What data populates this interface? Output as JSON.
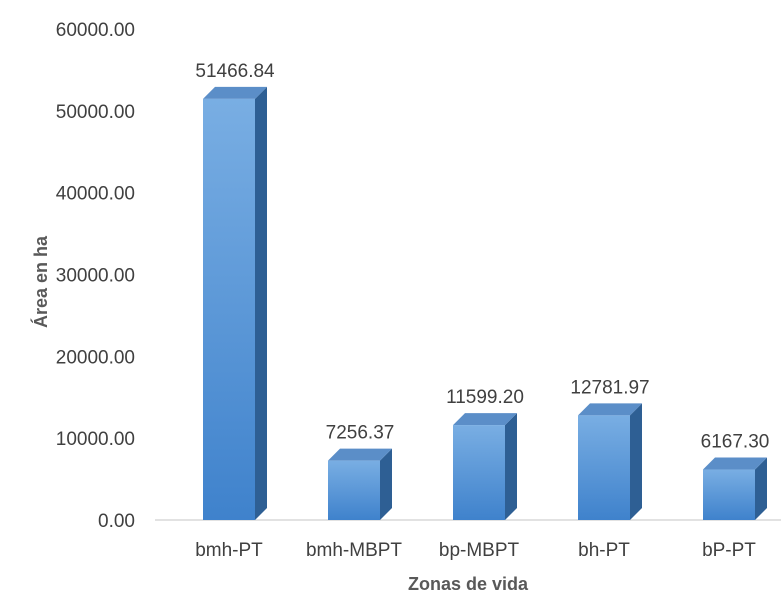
{
  "chart_data": {
    "type": "bar",
    "title": "",
    "xlabel": "Zonas de vida",
    "ylabel": "Área en ha",
    "categories": [
      "bmh-PT",
      "bmh-MBPT",
      "bp-MBPT",
      "bh-PT",
      "bP-PT"
    ],
    "values": [
      51466.84,
      7256.37,
      11599.2,
      12781.97,
      6167.3
    ],
    "value_labels": [
      "51466.84",
      "7256.37",
      "11599.20",
      "12781.97",
      "6167.30"
    ],
    "y_ticks": [
      "0.00",
      "10000.00",
      "20000.00",
      "30000.00",
      "40000.00",
      "50000.00",
      "60000.00"
    ],
    "ylim": [
      0,
      60000
    ],
    "grid": false,
    "legend": "none",
    "style": "3d-column",
    "colors": {
      "front_top": "#79aee3",
      "front_bottom": "#3f82cc",
      "side": "#2e5f94",
      "top": "#5b8ec8",
      "axis": "#d9d9d9"
    }
  }
}
